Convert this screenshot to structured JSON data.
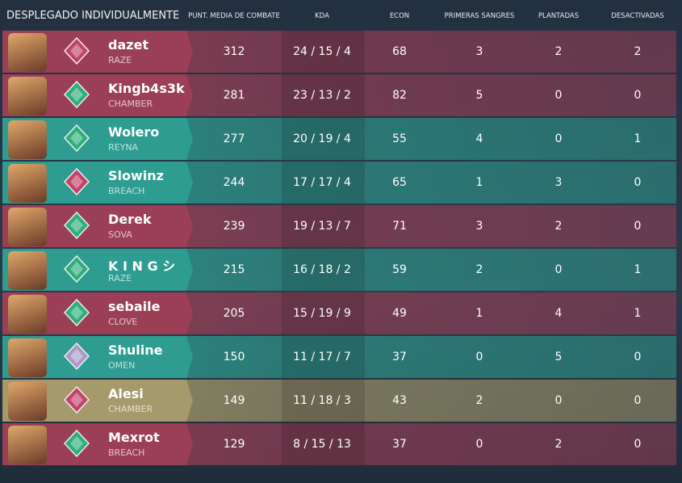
{
  "header": {
    "title": "DESPLEGADO INDIVIDUALMENTE",
    "columns": [
      "PUNT. MEDIA DE COMBATE",
      "KDA",
      "ECON",
      "PRIMERAS SANGRES",
      "PLANTADAS",
      "DESACTIVADAS"
    ]
  },
  "table": {
    "rows": [
      {
        "name": "dazet",
        "agent": "RAZE",
        "color": "#9b3f56",
        "stats": [
          312,
          "24 / 15 / 4",
          68,
          3,
          2,
          2
        ]
      },
      {
        "name": "Kingb4s3k",
        "agent": "CHAMBER",
        "color": "#9b3f56",
        "stats": [
          281,
          "23 / 13 / 2",
          82,
          5,
          0,
          0
        ]
      },
      {
        "name": "Wolero",
        "agent": "REYNA",
        "color": "#2e9c90",
        "stats": [
          277,
          "20 / 19 / 4",
          55,
          4,
          0,
          1
        ]
      },
      {
        "name": "Slowinz",
        "agent": "BREACH",
        "color": "#2e9c90",
        "stats": [
          244,
          "17 / 17 / 4",
          65,
          1,
          3,
          0
        ]
      },
      {
        "name": "Derek",
        "agent": "SOVA",
        "color": "#9b3f56",
        "stats": [
          239,
          "19 / 13 / 7",
          71,
          3,
          2,
          0
        ]
      },
      {
        "name": "K I N G シ",
        "agent": "RAZE",
        "color": "#2e9c90",
        "stats": [
          215,
          "16 / 18 / 2",
          59,
          2,
          0,
          1
        ]
      },
      {
        "name": "sebaile",
        "agent": "CLOVE",
        "color": "#9b3f56",
        "stats": [
          205,
          "15 / 19 / 9",
          49,
          1,
          4,
          1
        ]
      },
      {
        "name": "Shuline",
        "agent": "OMEN",
        "color": "#2e9c90",
        "stats": [
          150,
          "11 / 17 / 7",
          37,
          0,
          5,
          0
        ]
      },
      {
        "name": "Alesi",
        "agent": "CHAMBER",
        "color": "#a59a6c",
        "stats": [
          149,
          "11 / 18 / 3",
          43,
          2,
          0,
          0
        ]
      },
      {
        "name": "Mexrot",
        "agent": "BREACH",
        "color": "#9b3f56",
        "stats": [
          129,
          "8 / 15 / 13",
          37,
          0,
          2,
          0
        ]
      }
    ]
  }
}
